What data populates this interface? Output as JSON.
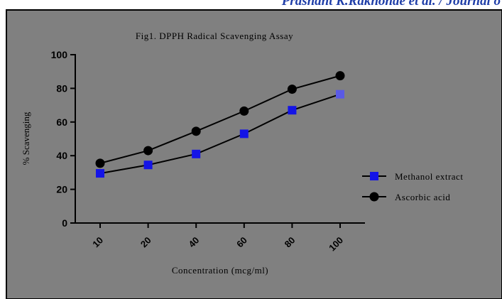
{
  "header": {
    "running_text": "Prashant K.Rakhonde et al. / Journal o"
  },
  "chart_data": {
    "type": "line",
    "title": "Fig1. DPPH Radical Scavenging Assay",
    "xlabel": "Concentration (mcg/ml)",
    "ylabel": "% Scavenging",
    "categories": [
      "10",
      "20",
      "40",
      "60",
      "80",
      "100"
    ],
    "ylim": [
      0,
      100
    ],
    "yticks": [
      "0",
      "20",
      "40",
      "60",
      "80",
      "100"
    ],
    "grid": false,
    "legend_position": "right",
    "background_color": "#808080",
    "series": [
      {
        "name": "Methanol extract",
        "marker": "square",
        "color": "#1414e6",
        "values": [
          29.5,
          34.5,
          41,
          53,
          67,
          76.5
        ]
      },
      {
        "name": "Ascorbic acid",
        "marker": "circle",
        "color": "#000000",
        "values": [
          35.5,
          43,
          54.5,
          66.5,
          79.5,
          87.5
        ]
      }
    ]
  }
}
